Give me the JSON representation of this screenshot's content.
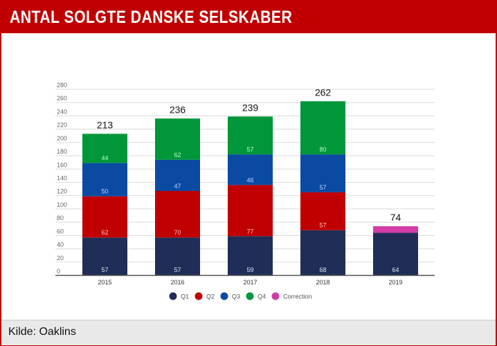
{
  "header": {
    "title": "ANTAL SOLGTE DANSKE SELSKABER"
  },
  "footer": {
    "source": "Kilde: Oaklins"
  },
  "chart_data": {
    "type": "bar",
    "stacked": true,
    "title": "ANTAL SOLGTE DANSKE SELSKABER",
    "categories": [
      "2015",
      "2016",
      "2017",
      "2018",
      "2019"
    ],
    "series": [
      {
        "name": "Q1",
        "color": "#1f2d57",
        "values": [
          57,
          57,
          59,
          68,
          64
        ]
      },
      {
        "name": "Q2",
        "color": "#c00000",
        "values": [
          62,
          70,
          77,
          57,
          null
        ]
      },
      {
        "name": "Q3",
        "color": "#0b4aa2",
        "values": [
          50,
          47,
          46,
          57,
          null
        ]
      },
      {
        "name": "Q4",
        "color": "#00963a",
        "values": [
          44,
          62,
          57,
          80,
          null
        ]
      },
      {
        "name": "Correction",
        "color": "#d23ca6",
        "values": [
          null,
          null,
          null,
          null,
          10
        ]
      }
    ],
    "totals": [
      "213",
      "236",
      "239",
      "262",
      "74"
    ],
    "ylim": [
      0,
      280
    ],
    "yticks": [
      "0",
      "20",
      "40",
      "60",
      "80",
      "100",
      "120",
      "140",
      "160",
      "180",
      "200",
      "220",
      "240",
      "260",
      "280"
    ],
    "grid": true,
    "legend": "bottom"
  }
}
